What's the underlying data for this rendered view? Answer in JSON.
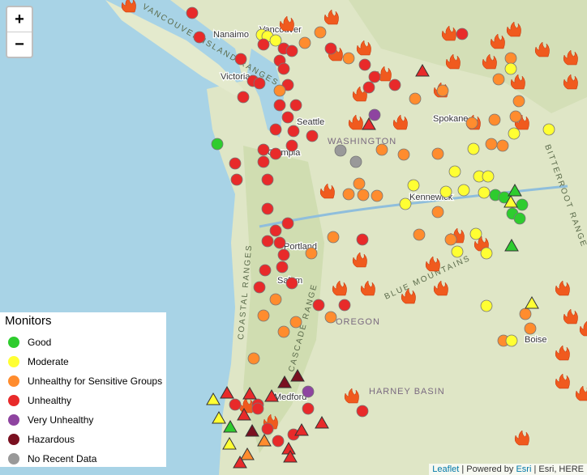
{
  "zoom": {
    "in": "+",
    "out": "−"
  },
  "legend": {
    "title": "Monitors",
    "items": [
      {
        "label": "Good",
        "color": "#2ecc2e"
      },
      {
        "label": "Moderate",
        "color": "#ffff33"
      },
      {
        "label": "Unhealthy for Sensitive Groups",
        "color": "#ff8c2e"
      },
      {
        "label": "Unhealthy",
        "color": "#e82a2a"
      },
      {
        "label": "Very Unhealthy",
        "color": "#8e44a0"
      },
      {
        "label": "Hazardous",
        "color": "#7a1020"
      },
      {
        "label": "No Recent Data",
        "color": "#999999"
      }
    ]
  },
  "map_labels": {
    "nanaimo": "Nanaimo",
    "vancouver": "Vancouver",
    "victoria": "Victoria",
    "seattle": "Seattle",
    "olympia": "Olympia",
    "washington": "WASHINGTON",
    "spokane": "Spokane",
    "kennewick": "Kennewick",
    "portland": "Portland",
    "salem": "Salem",
    "oregon": "OREGON",
    "harney": "HARNEY BASIN",
    "medford": "Medford",
    "boise": "Boise",
    "blue": "BLUE MOUNTAINS",
    "cascade": "CASCADE RANGE",
    "coastal": "COASTAL RANGES",
    "island": "VANCOUVER ISLAND RANGES",
    "bitterroot": "BITTERROOT RANGE"
  },
  "attribution": {
    "leaflet": "Leaflet",
    "sep1": " | Powered by ",
    "esri": "Esri",
    "rest": " | Esri, HERE"
  }
}
